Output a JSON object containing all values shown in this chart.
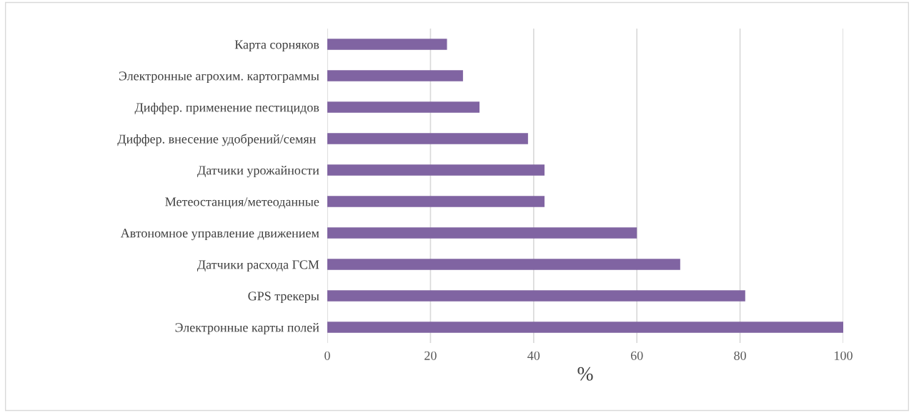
{
  "chart_data": {
    "type": "bar",
    "orientation": "horizontal",
    "xlabel": "%",
    "categories": [
      "Карта сорняков",
      "Электронные агрохим. картограммы",
      "Диффер. применение пестицидов",
      "Диффер. внесение удобрений/семян ",
      "Датчики урожайности",
      "Метеостанция/метеоданные",
      "Автономное управление движением",
      "Датчики расхода ГСМ",
      "GPS трекеры",
      "Электронные карты полей"
    ],
    "values": [
      23.2,
      26.3,
      29.5,
      38.9,
      42.1,
      42.1,
      60,
      68.4,
      81,
      100
    ],
    "color": "#8064a2",
    "xlim": [
      0,
      100
    ],
    "xticks": [
      0,
      20,
      40,
      60,
      80,
      100
    ],
    "grid": "x"
  }
}
